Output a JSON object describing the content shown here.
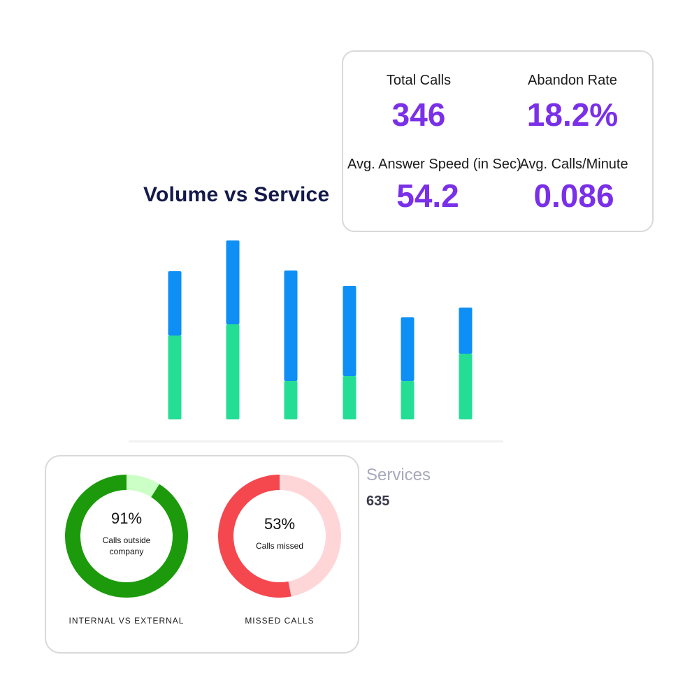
{
  "volume_chart": {
    "title": "Volume vs Service",
    "services_label": "Services",
    "services_value": "635"
  },
  "chart_data": {
    "type": "bar",
    "stacked": true,
    "title": "Volume vs Service",
    "categories": [
      "",
      "",
      "",
      "",
      "",
      ""
    ],
    "series": [
      {
        "color": "#25de95",
        "values": [
          120,
          136,
          55,
          62,
          55,
          94
        ]
      },
      {
        "color": "#0d8ff5",
        "values": [
          92,
          120,
          158,
          129,
          91,
          66
        ]
      }
    ],
    "ylim": [
      0,
      260
    ],
    "legend": "none",
    "grid": false
  },
  "stats": {
    "total_calls": {
      "label": "Total Calls",
      "value": "346"
    },
    "abandon_rate": {
      "label": "Abandon Rate",
      "value": "18.2%"
    },
    "avg_answer_speed": {
      "label": "Avg. Answer Speed (in Sec)",
      "value": "54.2"
    },
    "avg_calls_per_minute": {
      "label": "Avg. Calls/Minute",
      "value": "0.086"
    },
    "value_color": "#7a2fe8"
  },
  "donuts": {
    "internal_external": {
      "percent": 91,
      "percent_text": "91%",
      "subtitle": "Calls outside company",
      "caption": "INTERNAL VS EXTERNAL",
      "main_color": "#1c9a0c",
      "rest_color": "#ccffc6"
    },
    "missed_calls": {
      "percent": 53,
      "percent_text": "53%",
      "subtitle": "Calls missed",
      "caption": "MISSED CALLS",
      "main_color": "#f5474e",
      "rest_color": "#ffd6d8"
    }
  }
}
